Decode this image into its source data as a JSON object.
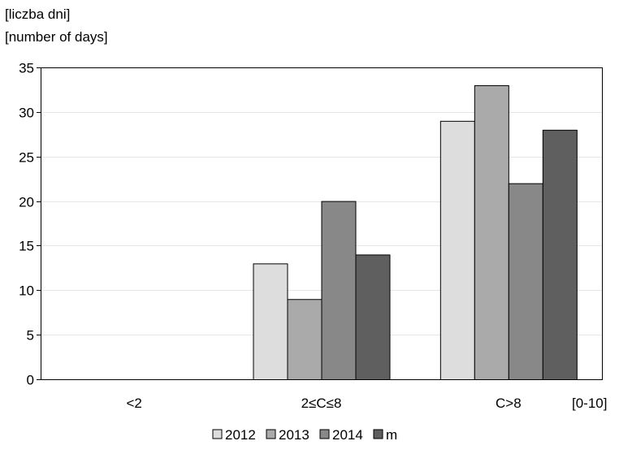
{
  "chart_data": {
    "type": "bar",
    "ylabel_lines": [
      "[liczba dni]",
      "[number of days]"
    ],
    "xlabel": "[0-10]",
    "categories": [
      "<2",
      "2≤C≤8",
      "C>8"
    ],
    "series": [
      {
        "name": "2012",
        "values": [
          0,
          13,
          29
        ],
        "color": "#dddddd"
      },
      {
        "name": "2013",
        "values": [
          0,
          9,
          33
        ],
        "color": "#aaaaaa"
      },
      {
        "name": "2014",
        "values": [
          0,
          20,
          22
        ],
        "color": "#888888"
      },
      {
        "name": "m",
        "values": [
          0,
          14,
          28
        ],
        "color": "#5f5f5f"
      }
    ],
    "ylim": [
      0,
      35
    ],
    "yticks": [
      0,
      5,
      10,
      15,
      20,
      25,
      30,
      35
    ],
    "grid": true,
    "legend_position": "bottom"
  }
}
